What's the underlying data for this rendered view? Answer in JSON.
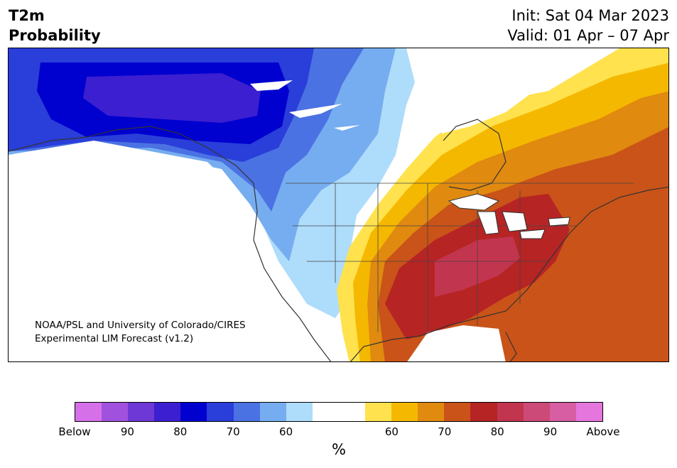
{
  "header": {
    "title_line1": "T2m",
    "title_line2": "Probability",
    "init": "Init: Sat 04 Mar 2023",
    "valid": "Valid: 01 Apr – 07 Apr"
  },
  "credit": {
    "line1": "NOAA/PSL and University of Colorado/CIRES",
    "line2": "Experimental LIM Forecast (v1.2)"
  },
  "legend": {
    "unit": "%",
    "colors": [
      "#d670e8",
      "#a052de",
      "#6e38d6",
      "#3b1fd0",
      "#0000cf",
      "#2a3ed9",
      "#4b72e3",
      "#76adf0",
      "#aedcfb",
      "#ffffff",
      "#ffffff",
      "#ffe24d",
      "#f5b800",
      "#e08a10",
      "#c95318",
      "#b62424",
      "#c2354f",
      "#cc4a77",
      "#d85ea3",
      "#e576dd"
    ],
    "tick_labels": [
      "Below",
      "90",
      "80",
      "70",
      "60",
      "60",
      "70",
      "80",
      "90",
      "Above"
    ]
  },
  "colors": {
    "cold_light": "#aedcfb",
    "cold_mid": "#76adf0",
    "cold_blue": "#4b72e3",
    "cold_strong": "#2a3ed9",
    "cold_deep": "#0000cf",
    "cold_violet": "#3b1fd0",
    "warm_yellow": "#ffe24d",
    "warm_gold": "#f5b800",
    "warm_orange": "#e08a10",
    "warm_rust": "#c95318",
    "warm_red": "#b62424",
    "warm_crimson": "#c2354f"
  }
}
